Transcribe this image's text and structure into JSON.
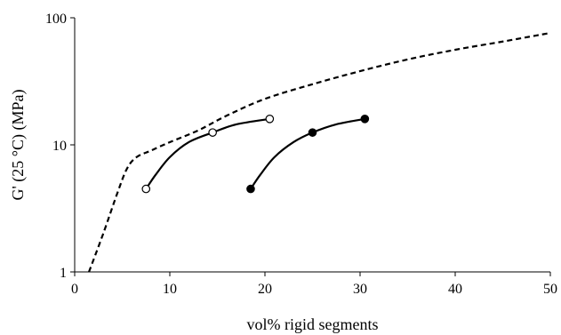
{
  "chart_data": {
    "type": "line",
    "title": "",
    "xlabel": "vol% rigid segments",
    "ylabel": "G' (25 °C) (MPa)",
    "xlim": [
      0,
      50
    ],
    "ylim": [
      1,
      100
    ],
    "yscale": "log",
    "grid": false,
    "legend": "none",
    "x_ticks": [
      0,
      10,
      20,
      30,
      40,
      50
    ],
    "y_ticks": [
      1,
      10,
      100
    ],
    "x_tick_labels": [
      "0",
      "10",
      "20",
      "30",
      "40",
      "50"
    ],
    "y_tick_labels": [
      "1",
      "10",
      "100"
    ],
    "series": [
      {
        "style": "dashed",
        "x": [
          1.5,
          3,
          4.5,
          5.5,
          6.5,
          8,
          10,
          13,
          16,
          20,
          25,
          30,
          35,
          40,
          45,
          50
        ],
        "y": [
          1.0,
          2.0,
          4.2,
          6.5,
          8.0,
          9.0,
          10.5,
          13.0,
          17.0,
          23.0,
          30.0,
          38.0,
          47.0,
          56.0,
          65.0,
          76.0
        ]
      },
      {
        "style": "solid",
        "marker": "open-circle",
        "markers_x": [
          7.5,
          14.5,
          20.5
        ],
        "markers_y": [
          4.5,
          12.5,
          16.0
        ],
        "x": [
          7.5,
          8.5,
          10,
          12,
          14.5,
          17,
          20.5
        ],
        "y": [
          4.5,
          5.8,
          8.0,
          10.5,
          12.5,
          14.5,
          16.0
        ]
      },
      {
        "style": "solid",
        "marker": "filled-circle",
        "markers_x": [
          18.5,
          25,
          30.5
        ],
        "markers_y": [
          4.5,
          12.5,
          16.0
        ],
        "x": [
          18.5,
          19.5,
          21,
          23,
          25,
          27.5,
          30.5
        ],
        "y": [
          4.5,
          5.8,
          8.0,
          10.5,
          12.5,
          14.5,
          16.0
        ]
      }
    ]
  }
}
